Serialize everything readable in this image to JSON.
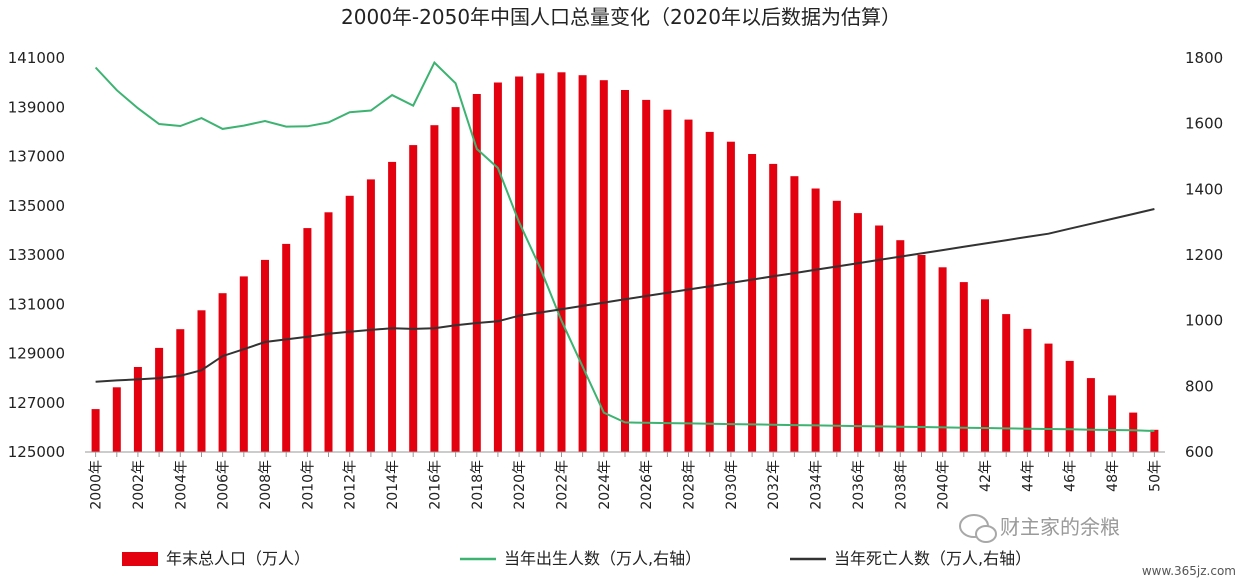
{
  "chart_data": {
    "type": "bar",
    "title": "2000年-2050年中国人口总量变化（2020年以后数据为估算）",
    "x": [
      2000,
      2001,
      2002,
      2003,
      2004,
      2005,
      2006,
      2007,
      2008,
      2009,
      2010,
      2011,
      2012,
      2013,
      2014,
      2015,
      2016,
      2017,
      2018,
      2019,
      2020,
      2021,
      2022,
      2023,
      2024,
      2025,
      2026,
      2027,
      2028,
      2029,
      2030,
      2031,
      2032,
      2033,
      2034,
      2035,
      2036,
      2037,
      2038,
      2039,
      2040,
      2041,
      2042,
      2043,
      2044,
      2045,
      2046,
      2047,
      2048,
      2049,
      2050
    ],
    "x_tick_labels": [
      "2000年",
      "2002年",
      "2004年",
      "2006年",
      "2008年",
      "2010年",
      "2012年",
      "2014年",
      "2016年",
      "2018年",
      "2020年",
      "2022年",
      "2024年",
      "2026年",
      "2028年",
      "2030年",
      "2032年",
      "2034年",
      "2036年",
      "2038年",
      "2040年",
      "42年",
      "44年",
      "46年",
      "48年",
      "50年"
    ],
    "y_left": {
      "ylim": [
        125000,
        141000
      ],
      "ticks": [
        "125000",
        "127000",
        "129000",
        "131000",
        "133000",
        "135000",
        "137000",
        "139000",
        "141000"
      ]
    },
    "y_right": {
      "ylim": [
        600,
        1800
      ],
      "ticks": [
        "600",
        "800",
        "1000",
        "1200",
        "1400",
        "1600",
        "1800"
      ]
    },
    "grid": false,
    "legend_position": "bottom",
    "series": [
      {
        "name": "年末总人口（万人）",
        "kind": "bar",
        "axis": "left",
        "color": "#e3000f",
        "values": [
          126743,
          127627,
          128453,
          129227,
          129988,
          130756,
          131448,
          132129,
          132802,
          133450,
          134091,
          134735,
          135404,
          136072,
          136782,
          137462,
          138271,
          139008,
          139538,
          140005,
          140250,
          140380,
          140420,
          140300,
          140100,
          139700,
          139300,
          138900,
          138500,
          138000,
          137600,
          137100,
          136700,
          136200,
          135700,
          135200,
          134700,
          134200,
          133600,
          133000,
          132500,
          131900,
          131200,
          130600,
          130000,
          129400,
          128700,
          128000,
          127300,
          126600,
          125900
        ]
      },
      {
        "name": "当年出生人数（万人,右轴）",
        "kind": "line",
        "axis": "right",
        "color": "#3cb371",
        "values": [
          1771,
          1702,
          1647,
          1599,
          1593,
          1617,
          1584,
          1594,
          1608,
          1591,
          1592,
          1604,
          1635,
          1640,
          1687,
          1655,
          1786,
          1723,
          1523,
          1465,
          1300,
          1160,
          1000,
          860,
          720,
          690,
          689,
          688,
          687,
          686,
          685,
          684,
          683,
          682,
          681,
          680,
          679,
          678,
          677,
          676,
          675,
          674,
          673,
          672,
          671,
          670,
          669,
          668,
          667,
          666,
          664
        ]
      },
      {
        "name": "当年死亡人数（万人,右轴）",
        "kind": "line",
        "axis": "right",
        "color": "#333333",
        "values": [
          814,
          818,
          821,
          825,
          832,
          849,
          892,
          913,
          935,
          943,
          951,
          960,
          966,
          972,
          977,
          975,
          977,
          986,
          993,
          998,
          1015,
          1025,
          1035,
          1045,
          1055,
          1065,
          1075,
          1085,
          1095,
          1105,
          1115,
          1125,
          1135,
          1145,
          1155,
          1165,
          1175,
          1185,
          1195,
          1205,
          1215,
          1225,
          1235,
          1245,
          1255,
          1265,
          1280,
          1295,
          1310,
          1325,
          1340
        ]
      }
    ]
  },
  "watermark": {
    "account": "财主家的余粮",
    "url": "www.365jz.com",
    "icon": "wechat-icon"
  }
}
